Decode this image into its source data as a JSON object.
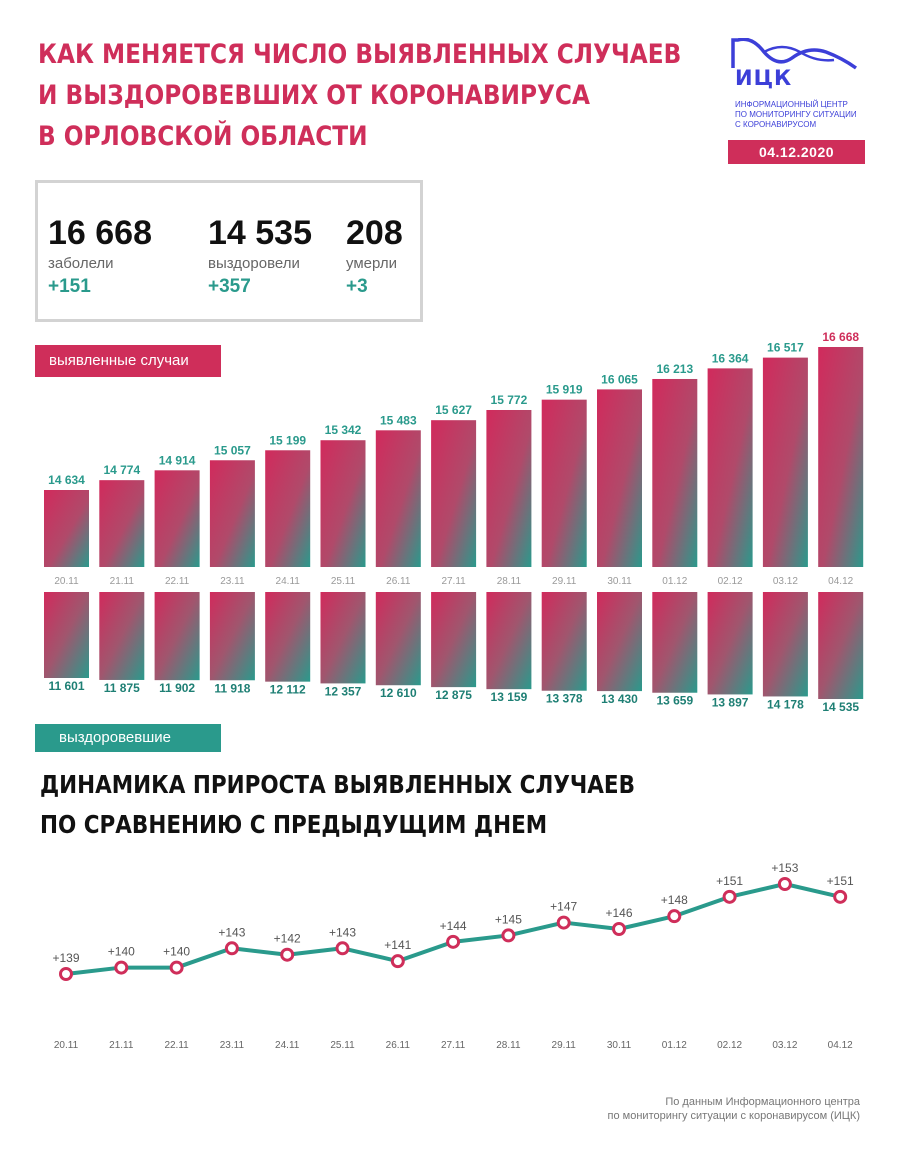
{
  "title": {
    "line1": "КАК МЕНЯЕТСЯ ЧИСЛО ВЫЯВЛЕННЫХ СЛУЧАЕВ",
    "line2": "И ВЫЗДОРОВЕВШИХ ОТ КОРОНАВИРУСА",
    "line3": "В ОРЛОВСКОЙ ОБЛАСТИ"
  },
  "logo": {
    "name": "ИЦК",
    "sub1": "Информационный центр",
    "sub2": "по мониторингу ситуации",
    "sub3": "с коронавирусом",
    "color": "#3c3fd8"
  },
  "date": "04.12.2020",
  "stats": {
    "cases": {
      "value": "16 668",
      "label": "заболели",
      "delta": "+151"
    },
    "recovered": {
      "value": "14 535",
      "label": "выздоровели",
      "delta": "+357"
    },
    "deaths": {
      "value": "208",
      "label": "умерли",
      "delta": "+3"
    }
  },
  "labels": {
    "cases": "выявленные случаи",
    "recovered": "выздоровевшие"
  },
  "subtitle": {
    "line1": "ДИНАМИКА ПРИРОСТА ВЫЯВЛЕННЫХ СЛУЧАЕВ",
    "line2": "ПО СРАВНЕНИЮ С ПРЕДЫДУЩИМ ДНЕМ"
  },
  "footer": {
    "line1": "По данным Информационного центра",
    "line2": "по мониторингу ситуации с коронавирусом (ИЦК)"
  },
  "colors": {
    "accent": "#cf2e5a",
    "teal": "#2a9a8c"
  },
  "chart_data": [
    {
      "type": "bar",
      "categories": [
        "20.11",
        "21.11",
        "22.11",
        "23.11",
        "24.11",
        "25.11",
        "26.11",
        "27.11",
        "28.11",
        "29.11",
        "30.11",
        "01.12",
        "02.12",
        "03.12",
        "04.12"
      ],
      "series": [
        {
          "name": "выявленные случаи",
          "values": [
            14634,
            14774,
            14914,
            15057,
            15199,
            15342,
            15483,
            15627,
            15772,
            15919,
            16065,
            16213,
            16364,
            16517,
            16668
          ]
        }
      ],
      "value_labels": [
        "14 634",
        "14 774",
        "14 914",
        "15 057",
        "15 199",
        "15 342",
        "15 483",
        "15 627",
        "15 772",
        "15 919",
        "16 065",
        "16 213",
        "16 364",
        "16 517",
        "16 668"
      ]
    },
    {
      "type": "bar",
      "categories": [
        "20.11",
        "21.11",
        "22.11",
        "23.11",
        "24.11",
        "25.11",
        "26.11",
        "27.11",
        "28.11",
        "29.11",
        "30.11",
        "01.12",
        "02.12",
        "03.12",
        "04.12"
      ],
      "series": [
        {
          "name": "выздоровевшие",
          "values": [
            11601,
            11875,
            11902,
            11918,
            12112,
            12357,
            12610,
            12875,
            13159,
            13378,
            13430,
            13659,
            13897,
            14178,
            14535
          ]
        }
      ],
      "value_labels": [
        "11 601",
        "11 875",
        "11 902",
        "11 918",
        "12 112",
        "12 357",
        "12 610",
        "12 875",
        "13 159",
        "13 378",
        "13 430",
        "13 659",
        "13 897",
        "14 178",
        "14 535"
      ]
    },
    {
      "type": "line",
      "categories": [
        "20.11",
        "21.11",
        "22.11",
        "23.11",
        "24.11",
        "25.11",
        "26.11",
        "27.11",
        "28.11",
        "29.11",
        "30.11",
        "01.12",
        "02.12",
        "03.12",
        "04.12"
      ],
      "series": [
        {
          "values": [
            139,
            140,
            140,
            143,
            142,
            143,
            141,
            144,
            145,
            147,
            146,
            148,
            151,
            153,
            151
          ]
        }
      ],
      "value_labels": [
        "+139",
        "+140",
        "+140",
        "+143",
        "+142",
        "+143",
        "+141",
        "+144",
        "+145",
        "+147",
        "+146",
        "+148",
        "+151",
        "+153",
        "+151"
      ],
      "title": "ДИНАМИКА ПРИРОСТА ВЫЯВЛЕННЫХ СЛУЧАЕВ ПО СРАВНЕНИЮ С ПРЕДЫДУЩИМ ДНЕМ"
    }
  ]
}
